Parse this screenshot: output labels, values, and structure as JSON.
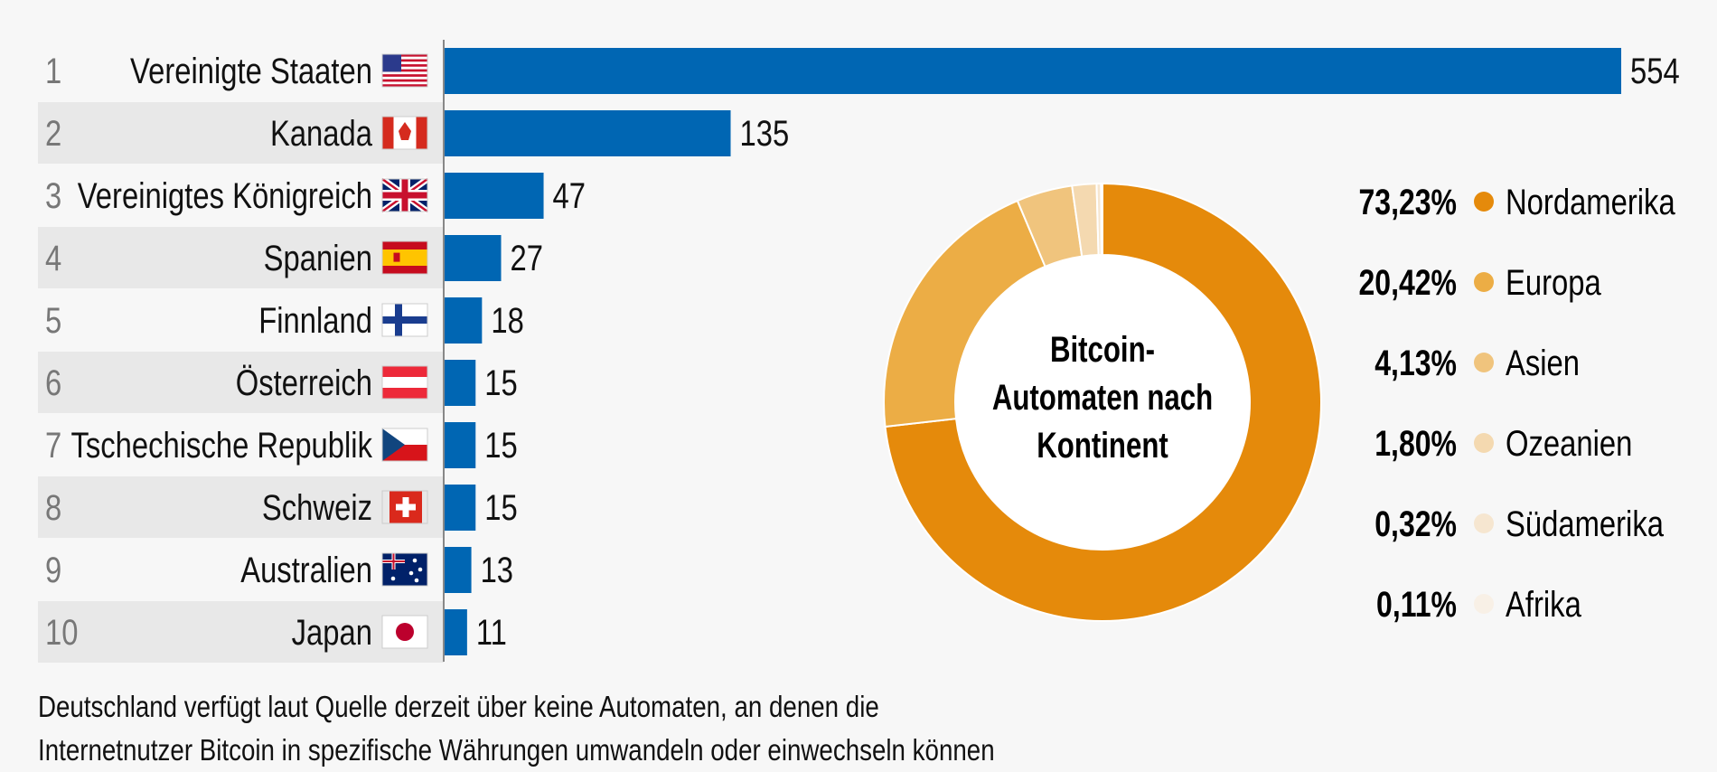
{
  "chart_data": [
    {
      "type": "bar",
      "orientation": "horizontal",
      "ranks": [
        "1",
        "2",
        "3",
        "4",
        "5",
        "6",
        "7",
        "8",
        "9",
        "10"
      ],
      "categories": [
        "Vereinigte Staaten",
        "Kanada",
        "Vereinigtes Königreich",
        "Spanien",
        "Finnland",
        "Österreich",
        "Tschechische Republik",
        "Schweiz",
        "Australien",
        "Japan"
      ],
      "flags": [
        "us",
        "ca",
        "gb",
        "es",
        "fi",
        "at",
        "cz",
        "ch",
        "au",
        "jp"
      ],
      "values": [
        554,
        135,
        47,
        27,
        18,
        15,
        15,
        15,
        13,
        11
      ],
      "value_labels": [
        "554",
        "135",
        "47",
        "27",
        "18",
        "15",
        "15",
        "15",
        "13",
        "11"
      ],
      "xlim": [
        0,
        554
      ],
      "color": "#0066b3",
      "row_band_color": "#e8e8e8"
    },
    {
      "type": "pie",
      "donut": true,
      "center_label": [
        "Bitcoin-",
        "Automaten nach",
        "Kontinent"
      ],
      "categories": [
        "Nordamerika",
        "Europa",
        "Asien",
        "Ozeanien",
        "Südamerika",
        "Afrika"
      ],
      "values": [
        73.23,
        20.42,
        4.13,
        1.8,
        0.32,
        0.11
      ],
      "value_labels": [
        "73,23%",
        "20,42%",
        "4,13%",
        "1,80%",
        "0,32%",
        "0,11%"
      ],
      "colors": [
        "#e58a0b",
        "#ecad45",
        "#f0c47d",
        "#f4d9b0",
        "#f6e6d0",
        "#f8f0e6"
      ],
      "legend_placement": "right"
    }
  ],
  "footnote": {
    "line1": "Deutschland verfügt laut Quelle derzeit über keine Automaten, an denen die",
    "line2": "Internetnutzer Bitcoin in spezifische Währungen umwandeln oder einwechseln können"
  }
}
